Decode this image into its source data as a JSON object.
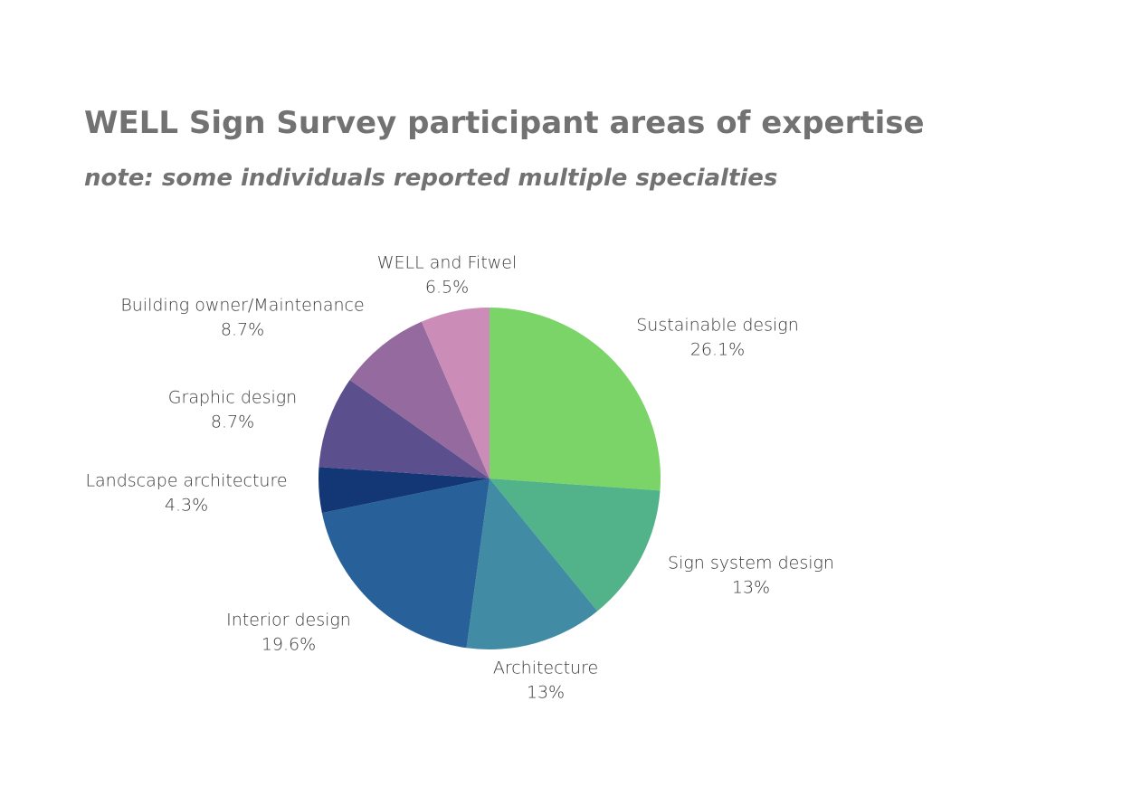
{
  "chart_data": {
    "type": "pie",
    "title": "WELL Sign Survey participant areas of expertise",
    "subtitle": "note: some individuals reported multiple specialties",
    "start_angle_deg": 0,
    "direction": "clockwise",
    "slices": [
      {
        "label": "Sustainable design",
        "value_label": "26.1%",
        "value": 26.1,
        "color": "#7ad467"
      },
      {
        "label": "Sign system design",
        "value_label": "13%",
        "value": 13.0,
        "color": "#52b28a"
      },
      {
        "label": "Architecture",
        "value_label": "13%",
        "value": 13.0,
        "color": "#418ca4"
      },
      {
        "label": "Interior design",
        "value_label": "19.6%",
        "value": 19.6,
        "color": "#286199"
      },
      {
        "label": "Landscape architecture",
        "value_label": "4.3%",
        "value": 4.3,
        "color": "#133775"
      },
      {
        "label": "Graphic design",
        "value_label": "8.7%",
        "value": 8.7,
        "color": "#5c4f8e"
      },
      {
        "label": "Building owner/Maintenance",
        "value_label": "8.7%",
        "value": 8.7,
        "color": "#956b9f"
      },
      {
        "label": "WELL and Fitwel",
        "value_label": "6.5%",
        "value": 6.5,
        "color": "#cb8db8"
      }
    ]
  }
}
